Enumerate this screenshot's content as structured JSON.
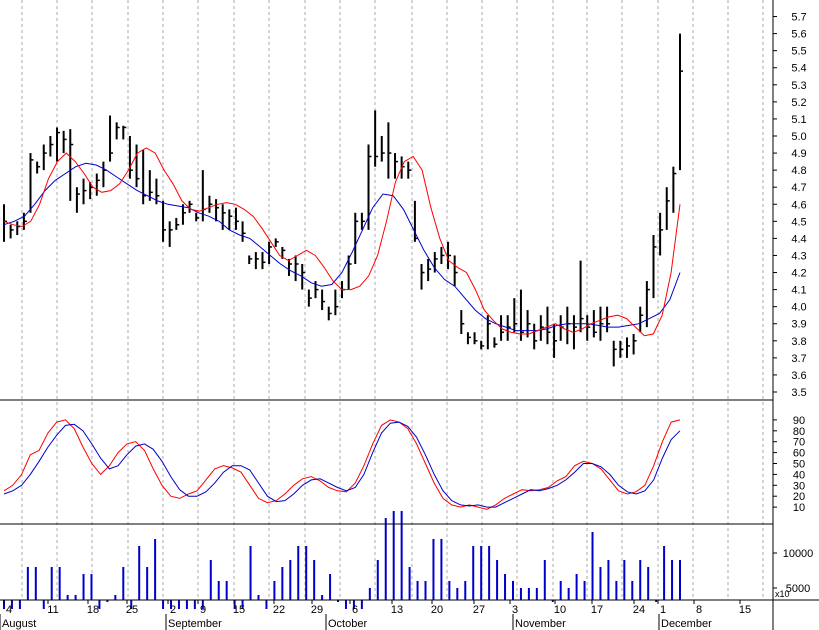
{
  "chart_data": [
    {
      "type": "ohlc",
      "panel": "price",
      "y_ticks": [
        "3.5",
        "3.6",
        "3.7",
        "3.8",
        "3.9",
        "4.0",
        "4.1",
        "4.2",
        "4.3",
        "4.4",
        "4.5",
        "4.6",
        "4.7",
        "4.8",
        "4.9",
        "5.0",
        "5.1",
        "5.2",
        "5.3",
        "5.4",
        "5.5",
        "5.6",
        "5.7"
      ],
      "ylim": [
        3.5,
        5.75
      ],
      "colors": {
        "bars": "#000000",
        "fast_ma": "#ff0000",
        "slow_ma": "#0000cc",
        "grid": "#aaaaaa"
      },
      "bars": [
        [
          4.6,
          4.38,
          4.5
        ],
        [
          4.48,
          4.4,
          4.45
        ],
        [
          4.5,
          4.42,
          4.47
        ],
        [
          4.55,
          4.45,
          4.5
        ],
        [
          4.9,
          4.55,
          4.86
        ],
        [
          4.85,
          4.78,
          4.82
        ],
        [
          4.95,
          4.8,
          4.9
        ],
        [
          5.0,
          4.88,
          4.95
        ],
        [
          5.05,
          4.85,
          5.02
        ],
        [
          5.03,
          4.9,
          4.98
        ],
        [
          5.04,
          4.62,
          4.95
        ],
        [
          4.7,
          4.55,
          4.66
        ],
        [
          4.75,
          4.6,
          4.68
        ],
        [
          4.73,
          4.63,
          4.7
        ],
        [
          4.78,
          4.65,
          4.74
        ],
        [
          4.85,
          4.7,
          4.8
        ],
        [
          5.12,
          4.85,
          4.9
        ],
        [
          5.08,
          4.98,
          5.05
        ],
        [
          5.06,
          4.98,
          5.05
        ],
        [
          5.0,
          4.75,
          4.8
        ],
        [
          4.95,
          4.7,
          4.75
        ],
        [
          4.92,
          4.6,
          4.65
        ],
        [
          4.8,
          4.62,
          4.67
        ],
        [
          4.75,
          4.6,
          4.65
        ],
        [
          4.62,
          4.38,
          4.45
        ],
        [
          4.5,
          4.35,
          4.45
        ],
        [
          4.52,
          4.45,
          4.48
        ],
        [
          4.6,
          4.48,
          4.55
        ],
        [
          4.62,
          4.55,
          4.6
        ],
        [
          4.55,
          4.5,
          4.52
        ],
        [
          4.8,
          4.5,
          4.57
        ],
        [
          4.65,
          4.55,
          4.6
        ],
        [
          4.63,
          4.5,
          4.58
        ],
        [
          4.6,
          4.45,
          4.55
        ],
        [
          4.57,
          4.45,
          4.53
        ],
        [
          4.58,
          4.45,
          4.5
        ],
        [
          4.5,
          4.38,
          4.43
        ],
        [
          4.3,
          4.25,
          4.28
        ],
        [
          4.32,
          4.22,
          4.28
        ],
        [
          4.32,
          4.22,
          4.26
        ],
        [
          4.38,
          4.25,
          4.35
        ],
        [
          4.4,
          4.35,
          4.38
        ],
        [
          4.35,
          4.28,
          4.33
        ],
        [
          4.28,
          4.18,
          4.25
        ],
        [
          4.3,
          4.15,
          4.25
        ],
        [
          4.25,
          4.1,
          4.2
        ],
        [
          4.1,
          4.0,
          4.05
        ],
        [
          4.15,
          4.05,
          4.1
        ],
        [
          4.1,
          3.98,
          4.03
        ],
        [
          4.0,
          3.92,
          3.96
        ],
        [
          4.1,
          3.95,
          4.0
        ],
        [
          4.15,
          4.05,
          4.1
        ],
        [
          4.3,
          4.1,
          4.25
        ],
        [
          4.55,
          4.25,
          4.5
        ],
        [
          4.55,
          4.45,
          4.5
        ],
        [
          4.95,
          4.45,
          4.88
        ],
        [
          5.15,
          4.82,
          4.88
        ],
        [
          5.0,
          4.85,
          4.9
        ],
        [
          5.08,
          4.75,
          4.9
        ],
        [
          4.9,
          4.75,
          4.85
        ],
        [
          4.88,
          4.75,
          4.82
        ],
        [
          4.85,
          4.75,
          4.8
        ],
        [
          4.62,
          4.38,
          4.4
        ],
        [
          4.25,
          4.1,
          4.2
        ],
        [
          4.28,
          4.15,
          4.22
        ],
        [
          4.32,
          4.2,
          4.28
        ],
        [
          4.35,
          4.25,
          4.3
        ],
        [
          4.38,
          4.22,
          4.3
        ],
        [
          4.3,
          4.12,
          4.2
        ],
        [
          3.98,
          3.84,
          3.9
        ],
        [
          3.85,
          3.78,
          3.82
        ],
        [
          3.85,
          3.78,
          3.8
        ],
        [
          3.8,
          3.75,
          3.77
        ],
        [
          3.95,
          3.75,
          3.9
        ],
        [
          3.82,
          3.76,
          3.78
        ],
        [
          3.95,
          3.8,
          3.85
        ],
        [
          3.95,
          3.8,
          3.88
        ],
        [
          4.05,
          3.85,
          3.9
        ],
        [
          4.1,
          3.8,
          3.85
        ],
        [
          3.98,
          3.82,
          3.9
        ],
        [
          3.9,
          3.75,
          3.8
        ],
        [
          3.95,
          3.8,
          3.88
        ],
        [
          4.0,
          3.78,
          3.85
        ],
        [
          3.9,
          3.7,
          3.8
        ],
        [
          3.95,
          3.8,
          3.88
        ],
        [
          4.0,
          3.78,
          3.9
        ],
        [
          3.95,
          3.75,
          3.88
        ],
        [
          4.27,
          3.85,
          3.93
        ],
        [
          3.95,
          3.8,
          3.88
        ],
        [
          3.98,
          3.82,
          3.85
        ],
        [
          4.0,
          3.8,
          3.9
        ],
        [
          4.0,
          3.85,
          3.9
        ],
        [
          3.8,
          3.65,
          3.75
        ],
        [
          3.8,
          3.7,
          3.75
        ],
        [
          3.82,
          3.7,
          3.77
        ],
        [
          3.84,
          3.72,
          3.8
        ],
        [
          4.0,
          3.85,
          3.95
        ],
        [
          4.15,
          3.88,
          4.1
        ],
        [
          4.42,
          4.05,
          4.35
        ],
        [
          4.55,
          4.3,
          4.45
        ],
        [
          4.7,
          4.45,
          4.62
        ],
        [
          4.82,
          4.55,
          4.78
        ],
        [
          5.6,
          4.8,
          5.38
        ]
      ],
      "fast_ma": [
        4.5,
        4.48,
        4.47,
        4.5,
        4.6,
        4.75,
        4.85,
        4.9,
        4.85,
        4.78,
        4.7,
        4.67,
        4.68,
        4.72,
        4.8,
        4.9,
        4.93,
        4.9,
        4.8,
        4.72,
        4.62,
        4.57,
        4.56,
        4.58,
        4.6,
        4.61,
        4.6,
        4.57,
        4.53,
        4.46,
        4.38,
        4.3,
        4.27,
        4.3,
        4.33,
        4.3,
        4.23,
        4.15,
        4.1,
        4.1,
        4.12,
        4.18,
        4.3,
        4.5,
        4.73,
        4.85,
        4.88,
        4.8,
        4.58,
        4.4,
        4.27,
        4.23,
        4.2,
        4.1,
        3.98,
        3.92,
        3.87,
        3.85,
        3.84,
        3.84,
        3.86,
        3.88,
        3.9,
        3.87,
        3.85,
        3.87,
        3.9,
        3.92,
        3.94,
        3.95,
        3.93,
        3.88,
        3.83,
        3.84,
        3.95,
        4.2,
        4.6
      ],
      "slow_ma": [
        4.48,
        4.5,
        4.53,
        4.6,
        4.68,
        4.74,
        4.78,
        4.82,
        4.84,
        4.83,
        4.8,
        4.76,
        4.72,
        4.68,
        4.65,
        4.62,
        4.6,
        4.59,
        4.58,
        4.55,
        4.53,
        4.5,
        4.45,
        4.42,
        4.4,
        4.35,
        4.3,
        4.25,
        4.21,
        4.18,
        4.14,
        4.12,
        4.13,
        4.2,
        4.32,
        4.45,
        4.58,
        4.66,
        4.65,
        4.57,
        4.45,
        4.33,
        4.23,
        4.16,
        4.12,
        4.05,
        3.98,
        3.93,
        3.9,
        3.88,
        3.86,
        3.86,
        3.86,
        3.87,
        3.89,
        3.9,
        3.9,
        3.9,
        3.89,
        3.88,
        3.88,
        3.89,
        3.9,
        3.93,
        3.96,
        4.04,
        4.2
      ]
    },
    {
      "type": "line",
      "panel": "oscillator",
      "y_ticks": [
        "10",
        "20",
        "30",
        "40",
        "50",
        "60",
        "70",
        "80",
        "90"
      ],
      "ylim": [
        0,
        100
      ],
      "series": [
        {
          "color": "#ff0000",
          "values": [
            25,
            30,
            40,
            58,
            62,
            78,
            88,
            90,
            82,
            65,
            50,
            40,
            48,
            60,
            68,
            70,
            62,
            45,
            30,
            20,
            18,
            22,
            25,
            35,
            45,
            48,
            46,
            42,
            30,
            18,
            14,
            16,
            22,
            30,
            36,
            38,
            34,
            28,
            25,
            24,
            32,
            48,
            68,
            85,
            90,
            88,
            82,
            68,
            50,
            32,
            18,
            12,
            10,
            12,
            10,
            8,
            12,
            18,
            22,
            26,
            25,
            26,
            28,
            34,
            38,
            48,
            52,
            50,
            45,
            35,
            25,
            22,
            24,
            30,
            48,
            70,
            88,
            90
          ]
        },
        {
          "color": "#0000cc",
          "values": [
            22,
            25,
            30,
            40,
            52,
            65,
            76,
            85,
            86,
            80,
            68,
            55,
            45,
            48,
            58,
            66,
            68,
            63,
            52,
            38,
            26,
            20,
            20,
            24,
            32,
            42,
            48,
            48,
            44,
            32,
            20,
            15,
            16,
            22,
            30,
            35,
            36,
            32,
            28,
            25,
            28,
            40,
            60,
            78,
            87,
            88,
            84,
            74,
            58,
            40,
            25,
            16,
            12,
            11,
            12,
            10,
            10,
            14,
            18,
            22,
            26,
            25,
            27,
            30,
            35,
            42,
            50,
            50,
            47,
            40,
            30,
            24,
            22,
            25,
            35,
            55,
            72,
            80
          ]
        }
      ]
    },
    {
      "type": "bar",
      "panel": "volume",
      "y_ticks": [
        "10000",
        "5000"
      ],
      "unit": "x10",
      "color": "#0000cc",
      "values": [
        2000,
        2000,
        2000,
        8000,
        8000,
        2000,
        8000,
        8000,
        4000,
        4000,
        7000,
        7000,
        2000,
        3000,
        4000,
        8000,
        2000,
        11000,
        8000,
        12000,
        2000,
        2000,
        2000,
        2000,
        2000,
        2000,
        9000,
        6000,
        6000,
        2000,
        2000,
        11000,
        4000,
        2000,
        6000,
        8000,
        9000,
        11000,
        11000,
        9000,
        4000,
        7000,
        3000,
        2000,
        2000,
        2000,
        5000,
        9000,
        15000,
        16000,
        16000,
        8000,
        6000,
        6000,
        12000,
        12000,
        6000,
        5000,
        6000,
        11000,
        11000,
        11000,
        9000,
        7000,
        6000,
        5000,
        5000,
        5000,
        9000,
        3000,
        6000,
        5000,
        7000,
        6000,
        13000,
        8000,
        9000,
        6000,
        9000,
        6000,
        9000,
        8000,
        3000,
        11000,
        9000,
        9000
      ]
    }
  ],
  "xaxis": {
    "day_labels": [
      "4",
      "11",
      "18",
      "25",
      "2",
      "9",
      "15",
      "22",
      "29",
      "6",
      "13",
      "20",
      "27",
      "3",
      "10",
      "17",
      "24",
      "1",
      "8",
      "15"
    ],
    "month_labels": [
      "August",
      "September",
      "October",
      "November",
      "December"
    ]
  }
}
